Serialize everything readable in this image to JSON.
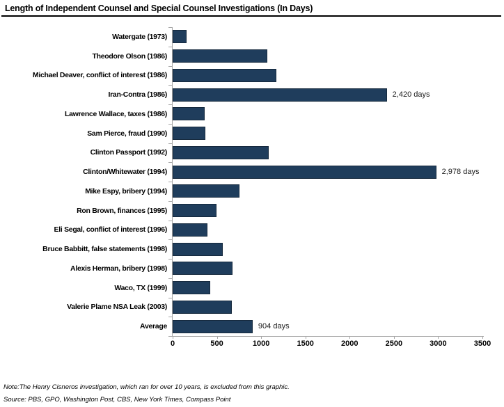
{
  "title": "Length of Independent Counsel and Special Counsel Investigations (In Days)",
  "footer": {
    "note": "Note:The Henry Cisneros investigation, which ran for over 10 years, is excluded from this graphic.",
    "source": "Source: PBS, GPO, Washington Post, CBS, New York Times, Compass Point"
  },
  "colors": {
    "bar_fill": "#1f3d5c",
    "bar_border": "#15293d",
    "axis": "#a6a6a6",
    "title_rule": "#000000"
  },
  "chart_data": {
    "type": "bar",
    "orientation": "horizontal",
    "title": "Length of Independent Counsel and Special Counsel Investigations (In Days)",
    "categories": [
      "Watergate (1973)",
      "Theodore Olson (1986)",
      "Michael Deaver, conflict of interest (1986)",
      "Iran-Contra (1986)",
      "Lawrence Wallace, taxes (1986)",
      "Sam Pierce, fraud (1990)",
      "Clinton Passport (1992)",
      "Clinton/Whitewater (1994)",
      "Mike Espy, bribery (1994)",
      "Ron Brown, finances (1995)",
      "Eli Segal, conflict of interest (1996)",
      "Bruce Babbitt, false statements (1998)",
      "Alexis Herman, bribery (1998)",
      "Waco, TX (1999)",
      "Valerie Plame NSA Leak (2003)",
      "Average"
    ],
    "values": [
      160,
      1070,
      1170,
      2420,
      365,
      370,
      1085,
      2978,
      755,
      495,
      390,
      570,
      680,
      425,
      665,
      904
    ],
    "bar_labels": {
      "3": "2,420 days",
      "7": "2,978 days",
      "15": "904 days"
    },
    "xlabel": "",
    "ylabel": "",
    "xlim": [
      0,
      3500
    ],
    "xticks": [
      0,
      500,
      1000,
      1500,
      2000,
      2500,
      3000,
      3500
    ],
    "grid": false,
    "legend": false
  }
}
